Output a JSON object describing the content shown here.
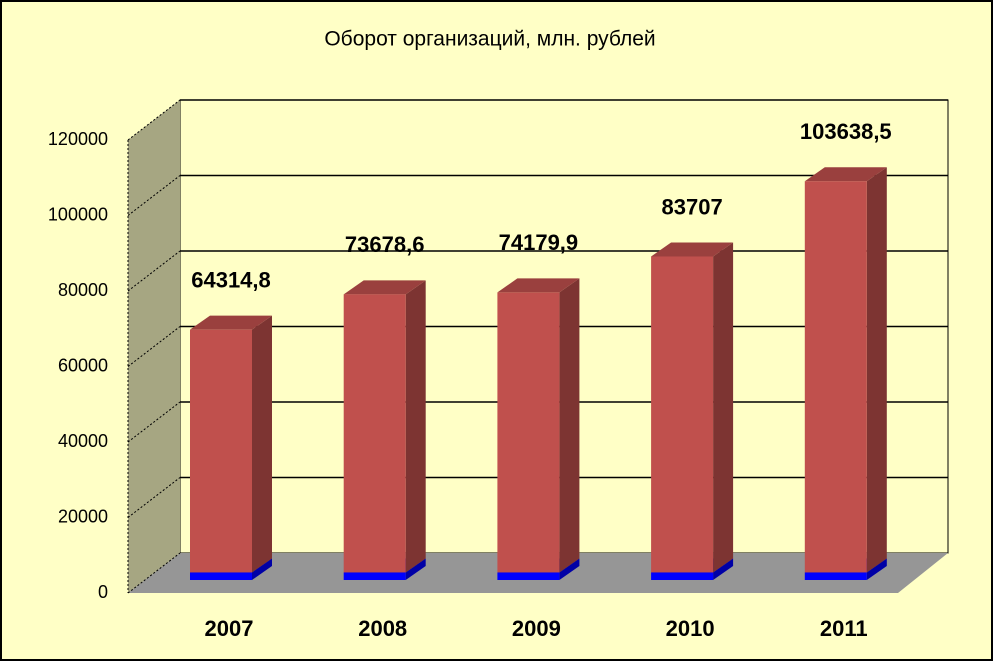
{
  "chart_data": {
    "type": "bar",
    "stacked": true,
    "title": "Оборот организаций, млн. рублей",
    "categories": [
      "2007",
      "2008",
      "2009",
      "2010",
      "2011"
    ],
    "series": [
      {
        "color": "#0000ff",
        "values": [
          2000,
          2000,
          2000,
          2000,
          2000
        ]
      },
      {
        "color": "#c0504d",
        "values": [
          64314.8,
          73678.6,
          74179.9,
          83707,
          103638.5
        ],
        "value_labels": [
          "64314,8",
          "73678,6",
          "74179,9",
          "83707",
          "103638,5"
        ]
      }
    ],
    "ylim": [
      0,
      120000
    ],
    "yticks": [
      0,
      20000,
      40000,
      60000,
      80000,
      100000,
      120000
    ],
    "grid": true
  }
}
